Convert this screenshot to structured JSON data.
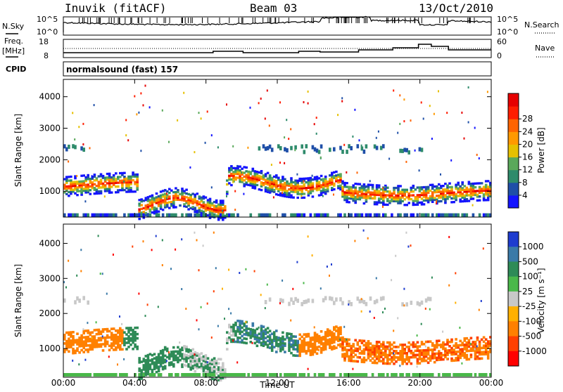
{
  "header": {
    "site": "Inuvik (fitACF)",
    "beam": "Beam 03",
    "date": "13/Oct/2010"
  },
  "top_panels": {
    "nsky_label": "N.Sky",
    "nsky_ticks": [
      "10^5",
      "10^0"
    ],
    "nsearch_label": "N.Search",
    "nsearch_ticks": [
      "10^5",
      "10^0"
    ],
    "freq_label": "Freq.",
    "freq_unit": "[MHz]",
    "freq_ticks": [
      "18",
      "8"
    ],
    "nave_label": "Nave",
    "nave_ticks": [
      "60",
      "0"
    ],
    "cpid_label": "CPID",
    "cpid_text": "normalsound (fast) 157"
  },
  "chart_data": [
    {
      "type": "heatmap",
      "name": "power-panel",
      "title": "",
      "xlabel": "",
      "ylabel": "Slant Range [km]",
      "y_ticks": [
        "1000",
        "2000",
        "3000",
        "4000"
      ],
      "ylim": [
        180,
        4550
      ],
      "xlim": [
        0,
        24
      ],
      "colorbar_label": "Power [dB]",
      "colorbar_ticks": [
        "4",
        "8",
        "12",
        "16",
        "20",
        "24",
        "28"
      ],
      "colorbar_colors": [
        "#1414ff",
        "#1f4fa8",
        "#2e8b6b",
        "#5aa85a",
        "#e6c000",
        "#ff9900",
        "#ff6400",
        "#ff1e00",
        "#e60000"
      ]
    },
    {
      "type": "heatmap",
      "name": "velocity-panel",
      "title": "",
      "xlabel": "Time UT",
      "ylabel": "Slant Range [km]",
      "x_ticks": [
        "00:00",
        "04:00",
        "08:00",
        "12:00",
        "16:00",
        "20:00",
        "00:00"
      ],
      "y_ticks": [
        "1000",
        "2000",
        "3000",
        "4000"
      ],
      "ylim": [
        180,
        4550
      ],
      "xlim": [
        0,
        24
      ],
      "colorbar_label": "Velocity [m s⁻¹]",
      "colorbar_ticks": [
        "1000",
        "500",
        "100",
        "25",
        "-25",
        "-100",
        "-500",
        "-1000"
      ],
      "colorbar_colors": [
        "#1e3ccf",
        "#3a7aa8",
        "#2e8b57",
        "#4ab84a",
        "#c8c8c8",
        "#ffb000",
        "#ff8000",
        "#ff4000",
        "#ff0000"
      ]
    }
  ]
}
